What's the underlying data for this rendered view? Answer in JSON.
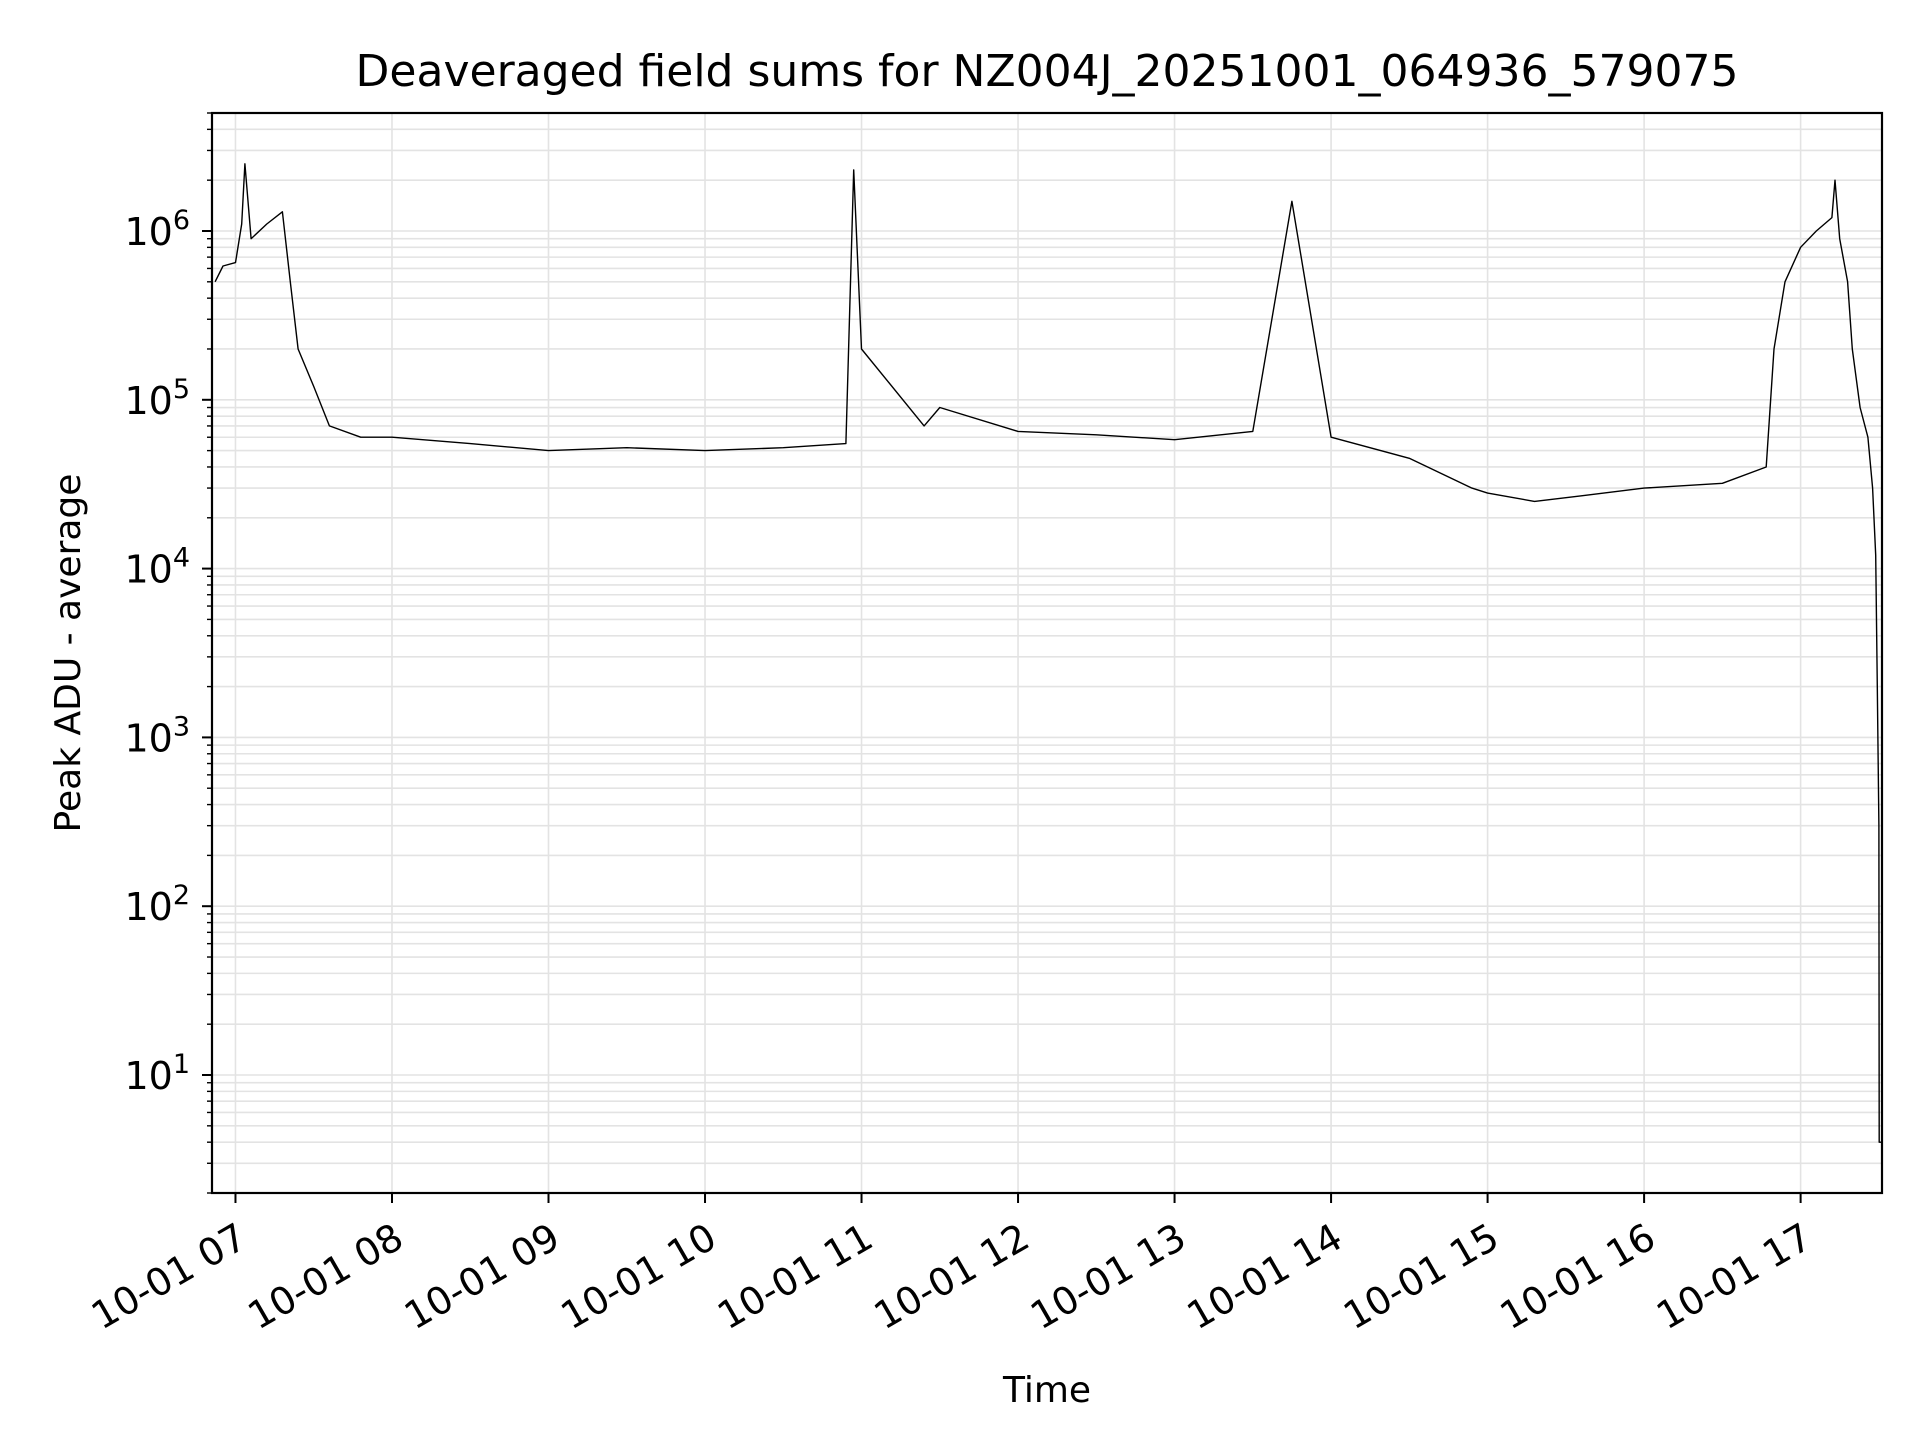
{
  "chart_data": {
    "type": "line",
    "title": "Deaveraged field sums for NZ004J_20251001_064936_579075",
    "xlabel": "Time",
    "ylabel": "Peak ADU - average",
    "yscale": "log",
    "ylim": [
      2,
      5000000
    ],
    "xlim_hours": [
      6.85,
      17.52
    ],
    "grid": true,
    "line_color": "#000000",
    "grid_color": "#e3e3e3",
    "x_ticks": [
      {
        "value": 7,
        "label": "10-01 07"
      },
      {
        "value": 8,
        "label": "10-01 08"
      },
      {
        "value": 9,
        "label": "10-01 09"
      },
      {
        "value": 10,
        "label": "10-01 10"
      },
      {
        "value": 11,
        "label": "10-01 11"
      },
      {
        "value": 12,
        "label": "10-01 12"
      },
      {
        "value": 13,
        "label": "10-01 13"
      },
      {
        "value": 14,
        "label": "10-01 14"
      },
      {
        "value": 15,
        "label": "10-01 15"
      },
      {
        "value": 16,
        "label": "10-01 16"
      },
      {
        "value": 17,
        "label": "10-01 17"
      }
    ],
    "y_ticks": [
      {
        "exp": 1,
        "base": "10",
        "power": "1"
      },
      {
        "exp": 2,
        "base": "10",
        "power": "2"
      },
      {
        "exp": 3,
        "base": "10",
        "power": "3"
      },
      {
        "exp": 4,
        "base": "10",
        "power": "4"
      },
      {
        "exp": 5,
        "base": "10",
        "power": "5"
      },
      {
        "exp": 6,
        "base": "10",
        "power": "6"
      }
    ],
    "series": [
      {
        "name": "Peak ADU - average",
        "points": [
          [
            6.87,
            500000
          ],
          [
            6.92,
            620000
          ],
          [
            7.0,
            650000
          ],
          [
            7.04,
            1100000
          ],
          [
            7.06,
            2500000
          ],
          [
            7.1,
            900000
          ],
          [
            7.2,
            1100000
          ],
          [
            7.3,
            1300000
          ],
          [
            7.35,
            500000
          ],
          [
            7.4,
            200000
          ],
          [
            7.5,
            120000
          ],
          [
            7.6,
            70000
          ],
          [
            7.8,
            60000
          ],
          [
            8.0,
            60000
          ],
          [
            8.5,
            55000
          ],
          [
            9.0,
            50000
          ],
          [
            9.5,
            52000
          ],
          [
            10.0,
            50000
          ],
          [
            10.5,
            52000
          ],
          [
            10.9,
            55000
          ],
          [
            10.95,
            2300000
          ],
          [
            11.0,
            200000
          ],
          [
            11.4,
            70000
          ],
          [
            11.5,
            90000
          ],
          [
            12.0,
            65000
          ],
          [
            12.5,
            62000
          ],
          [
            13.0,
            58000
          ],
          [
            13.5,
            65000
          ],
          [
            13.75,
            1500000
          ],
          [
            14.0,
            60000
          ],
          [
            14.5,
            45000
          ],
          [
            14.9,
            30000
          ],
          [
            15.0,
            28000
          ],
          [
            15.3,
            25000
          ],
          [
            15.6,
            27000
          ],
          [
            16.0,
            30000
          ],
          [
            16.5,
            32000
          ],
          [
            16.78,
            40000
          ],
          [
            16.83,
            200000
          ],
          [
            16.9,
            500000
          ],
          [
            17.0,
            800000
          ],
          [
            17.1,
            1000000
          ],
          [
            17.2,
            1200000
          ],
          [
            17.22,
            2000000
          ],
          [
            17.25,
            900000
          ],
          [
            17.3,
            500000
          ],
          [
            17.33,
            200000
          ],
          [
            17.38,
            90000
          ],
          [
            17.43,
            60000
          ],
          [
            17.46,
            30000
          ],
          [
            17.48,
            12000
          ],
          [
            17.49,
            2000
          ],
          [
            17.5,
            300
          ],
          [
            17.502,
            4
          ],
          [
            17.52,
            4
          ]
        ]
      }
    ]
  }
}
